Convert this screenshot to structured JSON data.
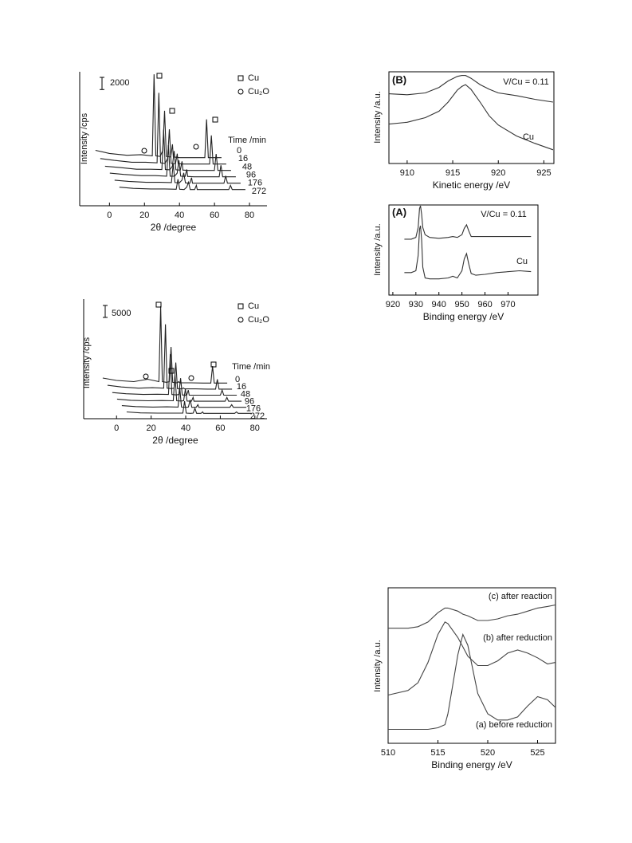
{
  "chart_data": [
    {
      "type": "line",
      "xlabel": "2θ /degree",
      "ylabel": "Intensity /cps",
      "xlim": [
        -17,
        90
      ],
      "ylim": [
        0,
        22000
      ],
      "xticks": [
        0,
        20,
        40,
        60,
        80
      ],
      "scale_bar": 2000,
      "legend_title": "Time /min",
      "phases": [
        {
          "name": "Cu",
          "symbol": "square"
        },
        {
          "name": "Cu₂O",
          "symbol": "circle"
        }
      ],
      "x": [
        -8,
        0,
        10,
        18,
        24.5,
        25.5,
        26.5,
        29,
        30.5,
        31.5,
        32.5,
        35,
        36,
        36.5,
        37,
        40,
        43,
        50,
        54.5,
        55.5,
        56.5,
        60,
        64
      ],
      "series": [
        {
          "name": "0",
          "color": "#222",
          "values": [
            1500,
            1000,
            700,
            800,
            600,
            14000,
            600,
            500,
            1500,
            8000,
            500,
            400,
            2500,
            400,
            400,
            300,
            300,
            300,
            300,
            6600,
            300,
            300,
            300
          ]
        },
        {
          "name": "16",
          "color": "#222",
          "values": [
            1200,
            900,
            600,
            600,
            500,
            12000,
            500,
            400,
            1200,
            6000,
            400,
            350,
            2000,
            350,
            350,
            300,
            300,
            300,
            300,
            5000,
            300,
            300,
            300
          ]
        },
        {
          "name": "48",
          "color": "#222",
          "values": [
            1000,
            800,
            500,
            500,
            450,
            7000,
            450,
            400,
            1000,
            3500,
            400,
            350,
            1800,
            350,
            350,
            300,
            300,
            300,
            300,
            3000,
            300,
            300,
            300
          ]
        },
        {
          "name": "96",
          "color": "#222",
          "values": [
            900,
            700,
            500,
            500,
            400,
            5500,
            400,
            400,
            900,
            3000,
            400,
            350,
            1500,
            350,
            350,
            300,
            300,
            300,
            300,
            2200,
            300,
            300,
            300
          ]
        },
        {
          "name": "176",
          "color": "#222",
          "values": [
            800,
            600,
            450,
            450,
            400,
            3500,
            400,
            350,
            800,
            2000,
            350,
            300,
            1200,
            300,
            300,
            300,
            300,
            300,
            300,
            1500,
            300,
            300,
            300
          ]
        },
        {
          "name": "272",
          "color": "#222",
          "values": [
            700,
            500,
            400,
            400,
            350,
            2000,
            350,
            300,
            700,
            1500,
            300,
            300,
            1000,
            300,
            300,
            300,
            300,
            300,
            300,
            1000,
            300,
            300,
            300
          ]
        }
      ]
    },
    {
      "type": "line",
      "xlabel": "2θ /degree",
      "ylabel": "Intensity /cps",
      "xlim": [
        -19,
        87
      ],
      "ylim": [
        0,
        50000
      ],
      "xticks": [
        0,
        20,
        40,
        60,
        80
      ],
      "scale_bar": 5000,
      "legend_title": "Time /min",
      "phases": [
        {
          "name": "Cu",
          "symbol": "square"
        },
        {
          "name": "Cu₂O",
          "symbol": "circle"
        }
      ],
      "x": [
        -8,
        0,
        10,
        18,
        24.5,
        25.5,
        26.5,
        29,
        30.5,
        31.5,
        32.5,
        35,
        36,
        36.5,
        37,
        40,
        43,
        50,
        54.5,
        55.5,
        56.5,
        60,
        64
      ],
      "series": [
        {
          "name": "0",
          "color": "#222",
          "values": [
            3000,
            2000,
            1500,
            2500,
            1500,
            33000,
            1500,
            1200,
            1500,
            16000,
            1200,
            1000,
            1500,
            1000,
            1000,
            1000,
            1000,
            900,
            900,
            8000,
            900,
            900,
            900
          ]
        },
        {
          "name": "16",
          "color": "#222",
          "values": [
            2500,
            1800,
            1300,
            1500,
            1300,
            28000,
            1300,
            1100,
            1300,
            12000,
            1100,
            1000,
            1400,
            1000,
            1000,
            1000,
            1000,
            900,
            900,
            5000,
            900,
            900,
            900
          ]
        },
        {
          "name": "48",
          "color": "#222",
          "values": [
            2000,
            1500,
            1200,
            1300,
            1200,
            18000,
            1200,
            1000,
            1200,
            8000,
            1000,
            900,
            3000,
            900,
            900,
            900,
            900,
            900,
            900,
            3000,
            900,
            900,
            900
          ]
        },
        {
          "name": "96",
          "color": "#222",
          "values": [
            1800,
            1300,
            1100,
            1200,
            1100,
            12000,
            1100,
            1000,
            1100,
            6000,
            1000,
            900,
            2500,
            900,
            900,
            900,
            900,
            900,
            900,
            2500,
            900,
            900,
            900
          ]
        },
        {
          "name": "176",
          "color": "#222",
          "values": [
            1600,
            1200,
            1000,
            1100,
            1000,
            9000,
            1000,
            900,
            1000,
            4000,
            900,
            900,
            2000,
            900,
            900,
            900,
            900,
            900,
            900,
            2000,
            900,
            900,
            900
          ]
        },
        {
          "name": "272",
          "color": "#222",
          "values": [
            1500,
            1100,
            1000,
            1000,
            1000,
            6000,
            1000,
            900,
            1000,
            3000,
            900,
            900,
            1500,
            900,
            900,
            900,
            900,
            900,
            900,
            1500,
            900,
            900,
            900
          ]
        }
      ]
    },
    {
      "type": "line",
      "panel_label": "(B)",
      "xlabel": "Kinetic energy /eV",
      "ylabel": "Intensity /a.u.",
      "xlim": [
        908,
        926.1
      ],
      "ylim": [
        0,
        100
      ],
      "xticks": [
        910,
        915,
        920,
        925
      ],
      "x": [
        908,
        910,
        912,
        913.5,
        914.5,
        915.5,
        916,
        916.4,
        917,
        918,
        919,
        920,
        922,
        924,
        926
      ],
      "series": [
        {
          "name": "V/Cu = 0.11",
          "color": "#333",
          "values": [
            76,
            75,
            77,
            83,
            90,
            95,
            96,
            96,
            93,
            86,
            81,
            77,
            74,
            70,
            67
          ]
        },
        {
          "name": "Cu",
          "color": "#333",
          "values": [
            43,
            45,
            50,
            57,
            67,
            80,
            84,
            86,
            81,
            67,
            52,
            42,
            30,
            22,
            15
          ]
        }
      ]
    },
    {
      "type": "line",
      "panel_label": "(A)",
      "xlabel": "Binding energy /eV",
      "ylabel": "Intensity /a.u.",
      "xlim": [
        918.3,
        983
      ],
      "ylim": [
        0,
        100
      ],
      "xticks": [
        920,
        930,
        940,
        950,
        960,
        970
      ],
      "x": [
        925,
        928,
        930,
        931,
        931.6,
        932,
        932.5,
        933,
        934,
        936,
        940,
        944,
        946,
        948,
        950,
        951,
        952,
        953,
        954,
        956,
        960,
        965,
        975,
        980
      ],
      "series": [
        {
          "name": "V/Cu = 0.11",
          "color": "#333",
          "values": [
            62,
            62,
            64,
            75,
            96,
            99,
            90,
            75,
            67,
            64,
            63,
            64,
            65,
            64,
            67,
            74,
            78,
            71,
            65,
            65,
            65,
            65,
            65,
            65
          ]
        },
        {
          "name": "Cu",
          "color": "#333",
          "values": [
            25,
            25,
            27,
            44,
            73,
            77,
            62,
            31,
            19,
            18,
            18,
            19,
            21,
            19,
            27,
            40,
            46,
            34,
            24,
            22,
            23,
            25,
            27,
            26
          ]
        }
      ]
    },
    {
      "type": "line",
      "xlabel": "Binding energy /eV",
      "ylabel": "Intensity /a.u.",
      "xlim": [
        510,
        526.8
      ],
      "ylim": [
        0,
        100
      ],
      "xticks": [
        510,
        515,
        520,
        525
      ],
      "x": [
        510,
        512,
        513,
        514,
        515,
        515.7,
        516,
        517,
        517.5,
        518,
        519,
        520,
        521,
        522,
        523,
        524,
        525,
        526,
        526.8
      ],
      "series": [
        {
          "name": "(c) after reaction",
          "color": "#444",
          "values": [
            74,
            74,
            75,
            78,
            84,
            87,
            87,
            85,
            83,
            82,
            79,
            79,
            80,
            82,
            83,
            85,
            87,
            88,
            89
          ]
        },
        {
          "name": "(b) after reduction",
          "color": "#444",
          "values": [
            31,
            34,
            39,
            52,
            70,
            78,
            77,
            68,
            62,
            56,
            50,
            50,
            53,
            58,
            60,
            58,
            55,
            51,
            52
          ]
        },
        {
          "name": "(a) before reduction",
          "color": "#444",
          "values": [
            9,
            9,
            9,
            9,
            10,
            12,
            19,
            57,
            70,
            63,
            32,
            19,
            15,
            15,
            17,
            24,
            30,
            28,
            23
          ]
        }
      ]
    }
  ]
}
